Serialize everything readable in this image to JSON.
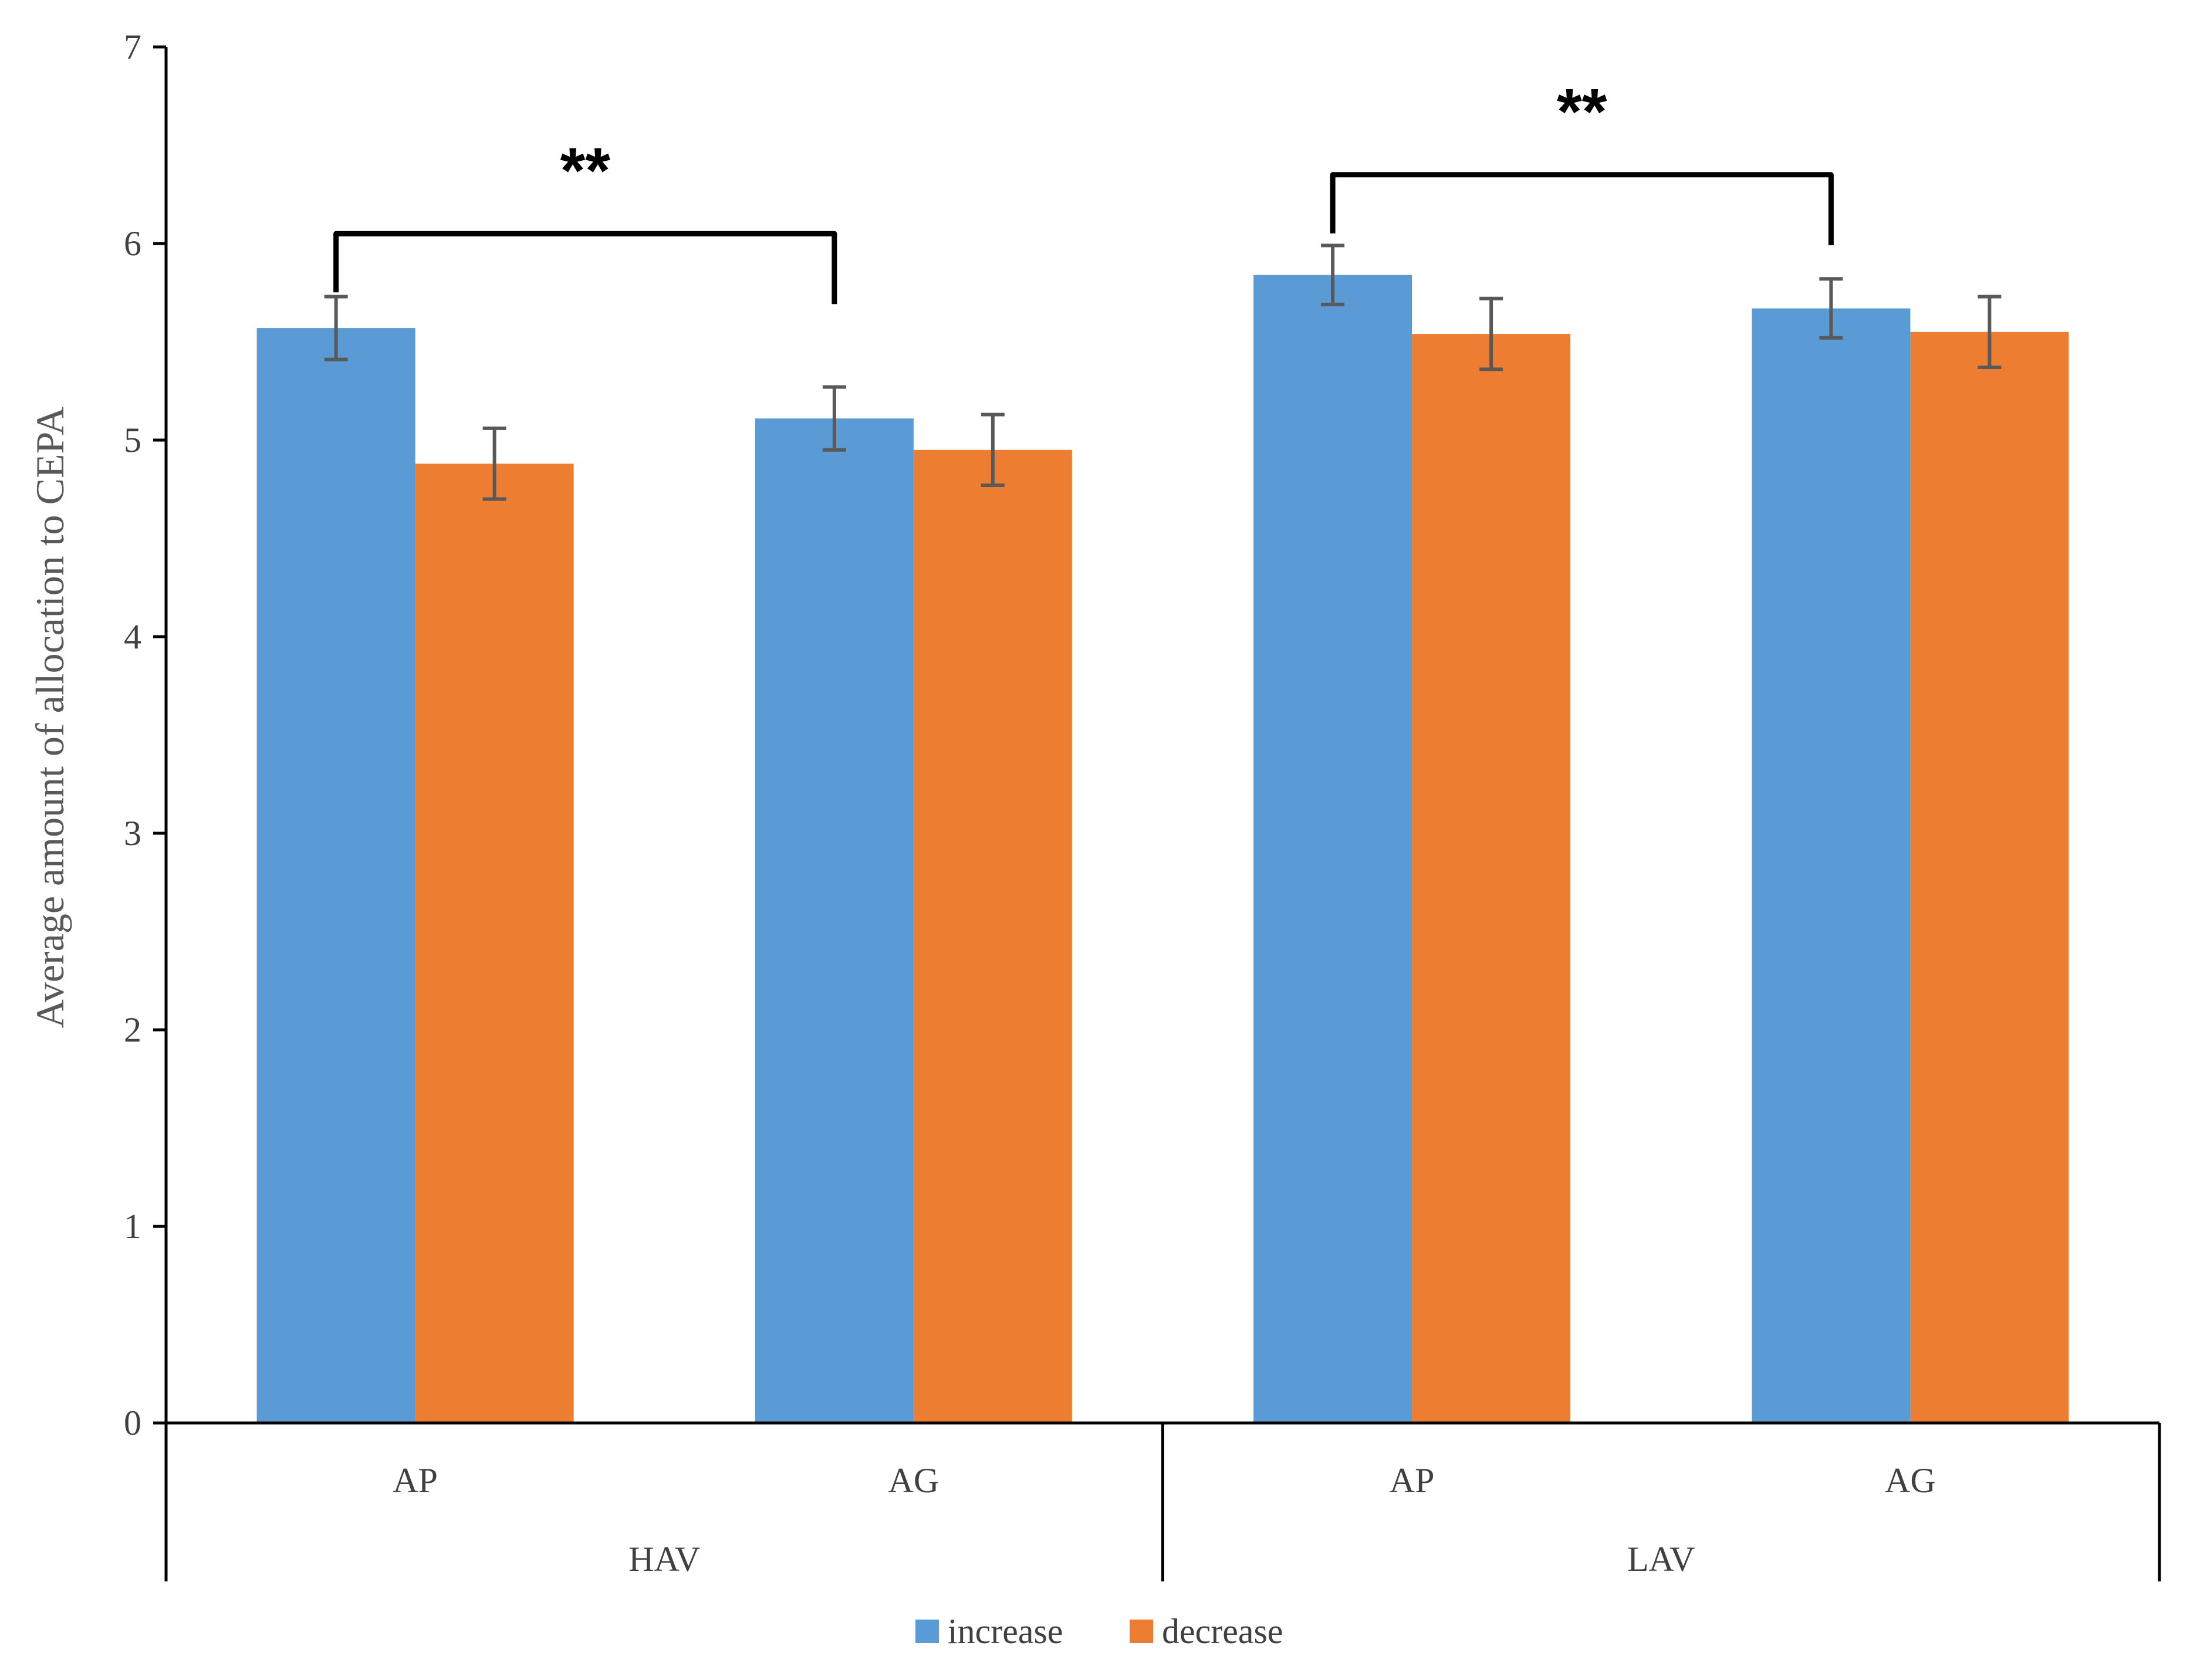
{
  "chart_data": {
    "type": "bar",
    "title": "",
    "ylabel": "Average amount of allocation to CEPA",
    "xlabel": "",
    "ylim": [
      0,
      7
    ],
    "yticks": [
      "0",
      "1",
      "2",
      "3",
      "4",
      "5",
      "6",
      "7"
    ],
    "groups": [
      {
        "label": "HAV",
        "categories": [
          "AP",
          "AG"
        ]
      },
      {
        "label": "LAV",
        "categories": [
          "AP",
          "AG"
        ]
      }
    ],
    "categories": [
      "AP",
      "AG",
      "AP",
      "AG"
    ],
    "series": [
      {
        "name": "increase",
        "color": "#5b9bd5",
        "values": [
          5.57,
          5.11,
          5.84,
          5.67
        ],
        "errors": [
          0.16,
          0.16,
          0.15,
          0.15
        ]
      },
      {
        "name": "decrease",
        "color": "#ed7d31",
        "values": [
          4.88,
          4.95,
          5.54,
          5.55
        ],
        "errors": [
          0.18,
          0.18,
          0.18,
          0.18
        ]
      }
    ],
    "significance": [
      {
        "label": "**",
        "from_category": 0,
        "to_category": 1,
        "level": 6.05
      },
      {
        "label": "**",
        "from_category": 2,
        "to_category": 3,
        "level": 6.35
      }
    ],
    "legend": {
      "position": "bottom",
      "entries": [
        "increase",
        "decrease"
      ]
    }
  }
}
